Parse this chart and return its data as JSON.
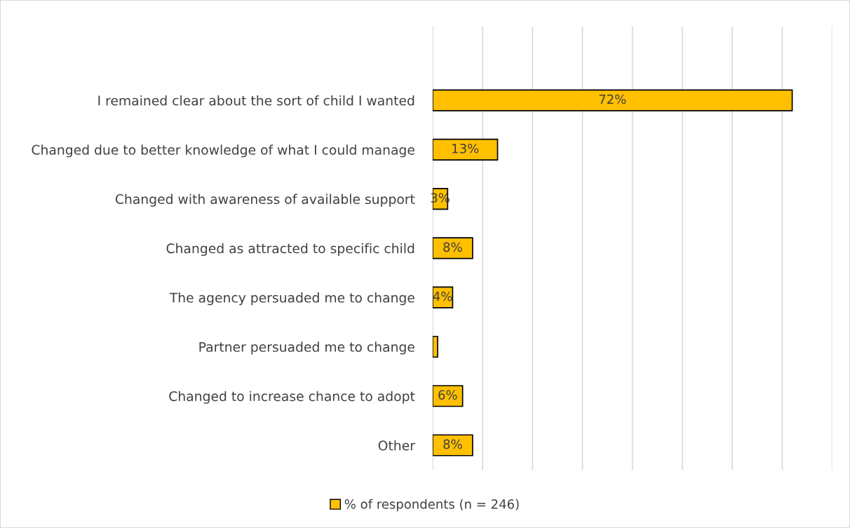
{
  "chart_data": {
    "type": "bar",
    "orientation": "horizontal",
    "categories": [
      "I remained clear about the sort of child I wanted",
      "Changed due to better knowledge of what I could manage",
      "Changed with awareness of available support",
      "Changed as attracted to specific child",
      "The agency persuaded me to change",
      "Partner persuaded me to change",
      "Changed to increase chance to adopt",
      "Other"
    ],
    "series": [
      {
        "name": "% of respondents (n = 246)",
        "color": "#ffc000",
        "values": [
          72,
          13,
          3,
          8,
          4,
          1,
          6,
          8
        ],
        "value_labels": [
          "72%",
          "13%",
          "3%",
          "8%",
          "4%",
          null,
          "6%",
          "8%"
        ]
      }
    ],
    "xlim": [
      0,
      80
    ],
    "xticks": [
      {
        "value": 0,
        "label": null
      },
      {
        "value": 10,
        "label": null
      },
      {
        "value": 20,
        "label": null
      },
      {
        "value": 30,
        "label": null
      },
      {
        "value": 40,
        "label": null
      },
      {
        "value": 50,
        "label": null
      },
      {
        "value": 60,
        "label": null
      },
      {
        "value": 70,
        "label": null
      },
      {
        "value": 80,
        "label": null
      }
    ],
    "grid": "x",
    "legend": "bottom",
    "tick_labels": "y"
  }
}
